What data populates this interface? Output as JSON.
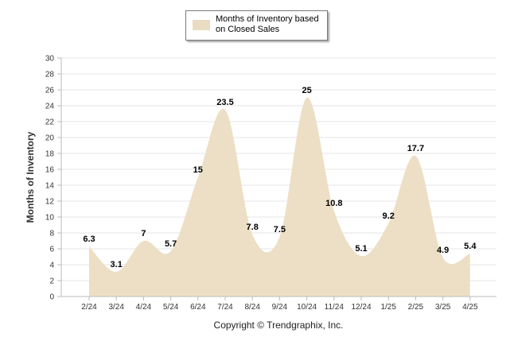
{
  "chart_data": {
    "type": "area",
    "title": "",
    "xlabel": "",
    "ylabel": "Months of Inventory",
    "categories": [
      "2/24",
      "3/24",
      "4/24",
      "5/24",
      "6/24",
      "7/24",
      "8/24",
      "9/24",
      "10/24",
      "11/24",
      "12/24",
      "1/25",
      "2/25",
      "3/25",
      "4/25"
    ],
    "series": [
      {
        "name": "Months of Inventory based on Closed Sales",
        "values": [
          6.3,
          3.1,
          7,
          5.7,
          15,
          23.5,
          7.8,
          7.5,
          25,
          10.8,
          5.1,
          9.2,
          17.7,
          4.9,
          5.4
        ]
      }
    ],
    "data_labels": [
      "6.3",
      "3.1",
      "7",
      "5.7",
      "15",
      "23.5",
      "7.8",
      "7.5",
      "25",
      "10.8",
      "5.1",
      "9.2",
      "17.7",
      "4.9",
      "5.4"
    ],
    "ylim": [
      0,
      30
    ],
    "yticks": [
      "0",
      "2",
      "4",
      "6",
      "8",
      "10",
      "12",
      "14",
      "16",
      "18",
      "20",
      "22",
      "24",
      "26",
      "28",
      "30"
    ],
    "grid": true,
    "legend_position": "top-center",
    "fill_color": "#ecdfc5",
    "legend_swatch_color": "#e9dcc2"
  },
  "legend": {
    "label": "Months of Inventory based on Closed Sales"
  },
  "footer": {
    "copyright": "Copyright © Trendgraphix, Inc."
  }
}
